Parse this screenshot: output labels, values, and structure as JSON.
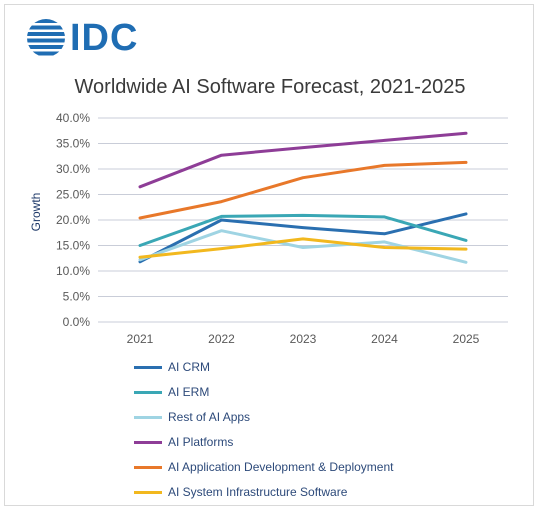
{
  "logo": {
    "text": "IDC"
  },
  "colors": {
    "brand": "#1f6db3",
    "grid": "#c9cdd8",
    "tick_text": "#595959"
  },
  "chart_data": {
    "type": "line",
    "title": "Worldwide AI Software Forecast, 2021-2025",
    "xlabel": "",
    "ylabel": "Growth",
    "x": [
      "2021",
      "2022",
      "2023",
      "2024",
      "2025"
    ],
    "ylim": [
      0,
      40
    ],
    "yticks": [
      "0.0%",
      "5.0%",
      "10.0%",
      "15.0%",
      "20.0%",
      "25.0%",
      "30.0%",
      "35.0%",
      "40.0%"
    ],
    "grid": true,
    "legend_position": "bottom",
    "series": [
      {
        "name": "AI CRM",
        "color": "#2a6fb0",
        "values": [
          11.8,
          20.0,
          18.5,
          17.3,
          21.2
        ]
      },
      {
        "name": "AI ERM",
        "color": "#3aa7b5",
        "values": [
          15.0,
          20.7,
          20.9,
          20.6,
          16.0
        ]
      },
      {
        "name": "Rest of AI Apps",
        "color": "#9fd4e3",
        "values": [
          12.2,
          17.9,
          14.6,
          15.7,
          11.7
        ]
      },
      {
        "name": "AI Platforms",
        "color": "#8e3d97",
        "values": [
          26.5,
          32.7,
          34.2,
          35.6,
          37.0
        ]
      },
      {
        "name": "AI Application Development & Deployment",
        "color": "#e8782a",
        "values": [
          20.4,
          23.6,
          28.3,
          30.7,
          31.3
        ]
      },
      {
        "name": "AI System Infrastructure Software",
        "color": "#f2b81e",
        "values": [
          12.7,
          14.4,
          16.3,
          14.6,
          14.3
        ]
      }
    ]
  }
}
